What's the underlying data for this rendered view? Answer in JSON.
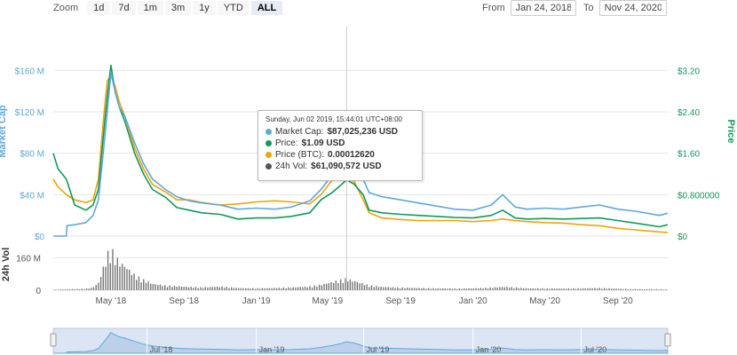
{
  "zoom": {
    "label": "Zoom",
    "buttons": [
      "1d",
      "7d",
      "1m",
      "3m",
      "1y",
      "YTD",
      "ALL"
    ],
    "active": "ALL"
  },
  "range": {
    "from_label": "From",
    "from_value": "Jan 24, 2018",
    "to_label": "To",
    "to_value": "Nov 24, 2020"
  },
  "tooltip": {
    "title": "Sunday, Jun 02 2019, 15:44:01 UTC+08:00",
    "rows": [
      {
        "label": "Market Cap:",
        "value": "$87,025,236 USD",
        "color": "#5fa8dc"
      },
      {
        "label": "Price:",
        "value": "$1.09 USD",
        "color": "#109a5a"
      },
      {
        "label": "Price (BTC):",
        "value": "0.00012620",
        "color": "#f0a30a"
      },
      {
        "label": "24h Vol:",
        "value": "$61,090,572 USD",
        "color": "#555555"
      }
    ]
  },
  "chart_data": {
    "type": "line",
    "x_range": [
      "2018-01-24",
      "2020-11-24"
    ],
    "x_ticks": [
      {
        "date": "2018-05-01",
        "label": "May '18"
      },
      {
        "date": "2018-09-01",
        "label": "Sep '18"
      },
      {
        "date": "2019-01-01",
        "label": "Jan '19"
      },
      {
        "date": "2019-05-01",
        "label": "May '19"
      },
      {
        "date": "2019-09-01",
        "label": "Sep '19"
      },
      {
        "date": "2020-01-01",
        "label": "Jan '20"
      },
      {
        "date": "2020-05-01",
        "label": "May '20"
      },
      {
        "date": "2020-09-01",
        "label": "Sep '20"
      }
    ],
    "navigator_ticks": [
      {
        "date": "2018-07-01",
        "label": "Jul '18"
      },
      {
        "date": "2019-01-01",
        "label": "Jan '19"
      },
      {
        "date": "2019-07-01",
        "label": "Jul '19"
      },
      {
        "date": "2020-01-01",
        "label": "Jan '20"
      },
      {
        "date": "2020-07-01",
        "label": "Jul '20"
      }
    ],
    "y_left": {
      "label": "Market Cap",
      "range": [
        0,
        180000000
      ],
      "ticks": [
        0,
        40000000,
        80000000,
        120000000,
        160000000
      ],
      "tick_labels": [
        "$0",
        "$40 M",
        "$80 M",
        "$120 M",
        "$160 M"
      ],
      "color": "#5fa8dc"
    },
    "y_right": {
      "label": "Price",
      "range": [
        0,
        3.6
      ],
      "ticks": [
        0,
        0.8,
        1.6,
        2.4,
        3.2
      ],
      "tick_labels": [
        "$0",
        "$0.800000",
        "$1.60",
        "$2.40",
        "$3.20"
      ],
      "color": "#109a5a"
    },
    "y_vol": {
      "label": "24h Vol",
      "range": [
        0,
        240000000
      ],
      "ticks": [
        0,
        160000000
      ],
      "tick_labels": [
        "0",
        "160 M"
      ]
    },
    "crosshair_date": "2019-06-02",
    "series": [
      {
        "name": "Market Cap",
        "axis": "left",
        "color": "#5fa8dc",
        "points": [
          [
            "2018-01-24",
            0
          ],
          [
            "2018-02-15",
            0
          ],
          [
            "2018-02-16",
            10000000
          ],
          [
            "2018-03-01",
            11000000
          ],
          [
            "2018-03-20",
            13000000
          ],
          [
            "2018-04-01",
            20000000
          ],
          [
            "2018-04-10",
            35000000
          ],
          [
            "2018-04-18",
            80000000
          ],
          [
            "2018-04-25",
            120000000
          ],
          [
            "2018-05-01",
            158000000
          ],
          [
            "2018-05-08",
            140000000
          ],
          [
            "2018-05-15",
            125000000
          ],
          [
            "2018-05-25",
            115000000
          ],
          [
            "2018-06-10",
            90000000
          ],
          [
            "2018-06-25",
            70000000
          ],
          [
            "2018-07-10",
            55000000
          ],
          [
            "2018-08-01",
            45000000
          ],
          [
            "2018-08-20",
            38000000
          ],
          [
            "2018-09-10",
            34000000
          ],
          [
            "2018-10-01",
            32000000
          ],
          [
            "2018-11-01",
            30000000
          ],
          [
            "2018-12-01",
            26000000
          ],
          [
            "2019-01-01",
            27000000
          ],
          [
            "2019-02-01",
            26000000
          ],
          [
            "2019-03-01",
            28000000
          ],
          [
            "2019-04-01",
            34000000
          ],
          [
            "2019-04-20",
            45000000
          ],
          [
            "2019-05-10",
            60000000
          ],
          [
            "2019-05-25",
            75000000
          ],
          [
            "2019-06-02",
            87000000
          ],
          [
            "2019-06-15",
            78000000
          ],
          [
            "2019-06-30",
            55000000
          ],
          [
            "2019-07-10",
            42000000
          ],
          [
            "2019-08-01",
            38000000
          ],
          [
            "2019-09-01",
            35000000
          ],
          [
            "2019-10-01",
            32000000
          ],
          [
            "2019-11-01",
            29000000
          ],
          [
            "2019-12-01",
            26000000
          ],
          [
            "2020-01-01",
            25000000
          ],
          [
            "2020-02-01",
            30000000
          ],
          [
            "2020-02-20",
            40000000
          ],
          [
            "2020-03-12",
            28000000
          ],
          [
            "2020-04-01",
            26000000
          ],
          [
            "2020-05-01",
            27000000
          ],
          [
            "2020-06-01",
            26000000
          ],
          [
            "2020-07-01",
            28000000
          ],
          [
            "2020-08-01",
            30000000
          ],
          [
            "2020-09-01",
            26000000
          ],
          [
            "2020-10-01",
            24000000
          ],
          [
            "2020-11-10",
            20000000
          ],
          [
            "2020-11-24",
            22000000
          ]
        ]
      },
      {
        "name": "Price",
        "axis": "right",
        "color": "#109a5a",
        "points": [
          [
            "2018-01-24",
            1.6
          ],
          [
            "2018-02-01",
            1.3
          ],
          [
            "2018-02-15",
            1.1
          ],
          [
            "2018-03-01",
            0.6
          ],
          [
            "2018-03-20",
            0.5
          ],
          [
            "2018-04-01",
            0.6
          ],
          [
            "2018-04-10",
            0.9
          ],
          [
            "2018-04-18",
            1.9
          ],
          [
            "2018-04-25",
            2.7
          ],
          [
            "2018-05-01",
            3.3
          ],
          [
            "2018-05-08",
            2.8
          ],
          [
            "2018-05-15",
            2.5
          ],
          [
            "2018-05-25",
            2.2
          ],
          [
            "2018-06-10",
            1.6
          ],
          [
            "2018-06-25",
            1.2
          ],
          [
            "2018-07-10",
            0.9
          ],
          [
            "2018-08-01",
            0.75
          ],
          [
            "2018-08-20",
            0.55
          ],
          [
            "2018-09-10",
            0.5
          ],
          [
            "2018-10-01",
            0.45
          ],
          [
            "2018-11-01",
            0.42
          ],
          [
            "2018-12-01",
            0.33
          ],
          [
            "2019-01-01",
            0.35
          ],
          [
            "2019-02-01",
            0.35
          ],
          [
            "2019-03-01",
            0.38
          ],
          [
            "2019-04-01",
            0.45
          ],
          [
            "2019-04-20",
            0.7
          ],
          [
            "2019-05-10",
            0.85
          ],
          [
            "2019-05-25",
            1.0
          ],
          [
            "2019-06-02",
            1.09
          ],
          [
            "2019-06-15",
            1.0
          ],
          [
            "2019-06-30",
            0.8
          ],
          [
            "2019-07-10",
            0.5
          ],
          [
            "2019-08-01",
            0.45
          ],
          [
            "2019-09-01",
            0.42
          ],
          [
            "2019-10-01",
            0.4
          ],
          [
            "2019-11-01",
            0.38
          ],
          [
            "2019-12-01",
            0.36
          ],
          [
            "2020-01-01",
            0.35
          ],
          [
            "2020-02-01",
            0.4
          ],
          [
            "2020-02-20",
            0.5
          ],
          [
            "2020-03-12",
            0.35
          ],
          [
            "2020-04-01",
            0.33
          ],
          [
            "2020-05-01",
            0.34
          ],
          [
            "2020-06-01",
            0.33
          ],
          [
            "2020-07-01",
            0.34
          ],
          [
            "2020-08-01",
            0.35
          ],
          [
            "2020-09-01",
            0.3
          ],
          [
            "2020-10-01",
            0.25
          ],
          [
            "2020-11-10",
            0.18
          ],
          [
            "2020-11-24",
            0.22
          ]
        ]
      },
      {
        "name": "Price (BTC)",
        "axis": "right",
        "color": "#f0a30a",
        "points": [
          [
            "2018-01-24",
            1.1
          ],
          [
            "2018-02-01",
            0.95
          ],
          [
            "2018-02-15",
            0.8
          ],
          [
            "2018-03-01",
            0.7
          ],
          [
            "2018-03-20",
            0.65
          ],
          [
            "2018-04-01",
            0.7
          ],
          [
            "2018-04-10",
            1.1
          ],
          [
            "2018-04-18",
            2.2
          ],
          [
            "2018-04-25",
            3.0
          ],
          [
            "2018-05-01",
            3.1
          ],
          [
            "2018-05-08",
            2.9
          ],
          [
            "2018-05-15",
            2.6
          ],
          [
            "2018-05-25",
            2.3
          ],
          [
            "2018-06-10",
            1.7
          ],
          [
            "2018-06-25",
            1.3
          ],
          [
            "2018-07-10",
            1.0
          ],
          [
            "2018-08-01",
            0.85
          ],
          [
            "2018-08-20",
            0.7
          ],
          [
            "2018-09-10",
            0.7
          ],
          [
            "2018-10-01",
            0.65
          ],
          [
            "2018-11-01",
            0.6
          ],
          [
            "2018-12-01",
            0.62
          ],
          [
            "2019-01-01",
            0.66
          ],
          [
            "2019-02-01",
            0.68
          ],
          [
            "2019-03-01",
            0.66
          ],
          [
            "2019-04-01",
            0.62
          ],
          [
            "2019-04-20",
            0.8
          ],
          [
            "2019-05-10",
            1.1
          ],
          [
            "2019-05-25",
            1.2
          ],
          [
            "2019-06-02",
            1.15
          ],
          [
            "2019-06-15",
            1.05
          ],
          [
            "2019-06-30",
            0.7
          ],
          [
            "2019-07-10",
            0.45
          ],
          [
            "2019-08-01",
            0.35
          ],
          [
            "2019-09-01",
            0.32
          ],
          [
            "2019-10-01",
            0.3
          ],
          [
            "2019-11-01",
            0.3
          ],
          [
            "2019-12-01",
            0.3
          ],
          [
            "2020-01-01",
            0.28
          ],
          [
            "2020-02-01",
            0.3
          ],
          [
            "2020-02-20",
            0.33
          ],
          [
            "2020-03-12",
            0.3
          ],
          [
            "2020-04-01",
            0.28
          ],
          [
            "2020-05-01",
            0.26
          ],
          [
            "2020-06-01",
            0.25
          ],
          [
            "2020-07-01",
            0.22
          ],
          [
            "2020-08-01",
            0.2
          ],
          [
            "2020-09-01",
            0.15
          ],
          [
            "2020-10-01",
            0.12
          ],
          [
            "2020-11-10",
            0.08
          ],
          [
            "2020-11-24",
            0.07
          ]
        ]
      }
    ],
    "volume": {
      "name": "24h Vol",
      "color": "#777777",
      "points": [
        [
          "2018-01-24",
          3000000
        ],
        [
          "2018-02-15",
          5000000
        ],
        [
          "2018-03-01",
          6000000
        ],
        [
          "2018-03-20",
          8000000
        ],
        [
          "2018-04-01",
          15000000
        ],
        [
          "2018-04-10",
          40000000
        ],
        [
          "2018-04-18",
          120000000
        ],
        [
          "2018-04-25",
          190000000
        ],
        [
          "2018-05-01",
          220000000
        ],
        [
          "2018-05-08",
          180000000
        ],
        [
          "2018-05-15",
          150000000
        ],
        [
          "2018-05-25",
          130000000
        ],
        [
          "2018-06-10",
          80000000
        ],
        [
          "2018-06-25",
          55000000
        ],
        [
          "2018-07-10",
          35000000
        ],
        [
          "2018-08-01",
          25000000
        ],
        [
          "2018-08-20",
          22000000
        ],
        [
          "2018-09-10",
          18000000
        ],
        [
          "2018-10-01",
          15000000
        ],
        [
          "2018-11-01",
          20000000
        ],
        [
          "2018-12-01",
          12000000
        ],
        [
          "2019-01-01",
          10000000
        ],
        [
          "2019-02-01",
          12000000
        ],
        [
          "2019-03-01",
          15000000
        ],
        [
          "2019-04-01",
          20000000
        ],
        [
          "2019-04-20",
          30000000
        ],
        [
          "2019-05-10",
          45000000
        ],
        [
          "2019-05-25",
          55000000
        ],
        [
          "2019-06-02",
          61000000
        ],
        [
          "2019-06-15",
          50000000
        ],
        [
          "2019-06-30",
          35000000
        ],
        [
          "2019-07-10",
          25000000
        ],
        [
          "2019-08-01",
          18000000
        ],
        [
          "2019-09-01",
          14000000
        ],
        [
          "2019-10-01",
          12000000
        ],
        [
          "2019-11-01",
          10000000
        ],
        [
          "2019-12-01",
          9000000
        ],
        [
          "2020-01-01",
          10000000
        ],
        [
          "2020-02-01",
          14000000
        ],
        [
          "2020-02-20",
          18000000
        ],
        [
          "2020-03-12",
          15000000
        ],
        [
          "2020-04-01",
          10000000
        ],
        [
          "2020-05-01",
          10000000
        ],
        [
          "2020-06-01",
          9000000
        ],
        [
          "2020-07-01",
          10000000
        ],
        [
          "2020-08-01",
          12000000
        ],
        [
          "2020-09-01",
          8000000
        ],
        [
          "2020-10-01",
          6000000
        ],
        [
          "2020-11-10",
          5000000
        ],
        [
          "2020-11-24",
          4000000
        ]
      ]
    }
  }
}
